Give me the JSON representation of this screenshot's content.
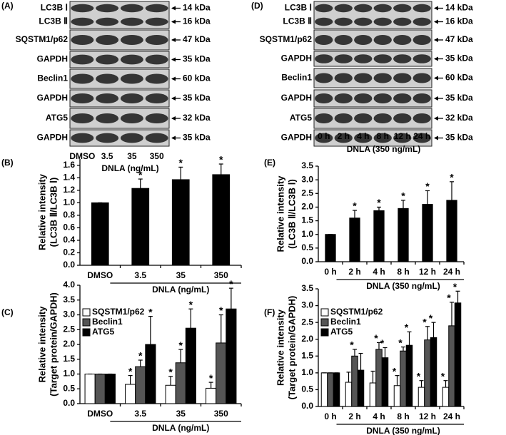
{
  "blots": [
    {
      "panel": "(A)",
      "lanes": [
        "DMSO",
        "3.5",
        "35",
        "350"
      ],
      "xlabel": "DNLA (ng/mL)",
      "rows": [
        {
          "labels": [
            "LC3B Ⅰ",
            "LC3B Ⅱ"
          ],
          "kda": [
            "14 kDa",
            "16 kDa"
          ]
        },
        {
          "labels": [
            "SQSTM1/p62"
          ],
          "kda": [
            "47 kDa"
          ]
        },
        {
          "labels": [
            "GAPDH"
          ],
          "kda": [
            "35 kDa"
          ]
        },
        {
          "labels": [
            "Beclin1"
          ],
          "kda": [
            "60 kDa"
          ]
        },
        {
          "labels": [
            "GAPDH"
          ],
          "kda": [
            "35 kDa"
          ]
        },
        {
          "labels": [
            "ATG5"
          ],
          "kda": [
            "32 kDa"
          ]
        },
        {
          "labels": [
            "GAPDH"
          ],
          "kda": [
            "35 kDa"
          ]
        }
      ]
    },
    {
      "panel": "(D)",
      "lanes": [
        "0 h",
        "2 h",
        "4 h",
        "8 h",
        "12 h",
        "24 h"
      ],
      "xlabel": "DNLA (350 ng/mL)",
      "rows": [
        {
          "labels": [
            "LC3B Ⅰ",
            "LC3B Ⅱ"
          ],
          "kda": [
            "14 kDa",
            "16 kDa"
          ]
        },
        {
          "labels": [
            "SQSTM1/p62"
          ],
          "kda": [
            "47 kDa"
          ]
        },
        {
          "labels": [
            "GAPDH"
          ],
          "kda": [
            "35 kDa"
          ]
        },
        {
          "labels": [
            "Beclin1"
          ],
          "kda": [
            "60 kDa"
          ]
        },
        {
          "labels": [
            "GAPDH"
          ],
          "kda": [
            "35 kDa"
          ]
        },
        {
          "labels": [
            "ATG5"
          ],
          "kda": [
            "32 kDa"
          ]
        },
        {
          "labels": [
            "GAPDH"
          ],
          "kda": [
            "35 kDa"
          ]
        }
      ]
    }
  ],
  "chart_data": [
    {
      "type": "bar",
      "panel": "(B)",
      "ylabel": [
        "Relative intensity",
        "(LC3B Ⅱ/LC3B Ⅰ)"
      ],
      "xlabel": "DNLA (ng/mL)",
      "categories": [
        "DMSO",
        "3.5",
        "35",
        "350"
      ],
      "values": [
        1.0,
        1.23,
        1.37,
        1.45
      ],
      "errors": [
        0,
        0.15,
        0.2,
        0.17
      ],
      "significant": [
        false,
        true,
        true,
        true
      ],
      "asterisk": "*",
      "color": "#000000",
      "ylim": [
        0,
        1.7
      ],
      "yticks": [
        {
          "value": 0,
          "label": "0.0"
        },
        0.2,
        0.4,
        0.6,
        0.8,
        {
          "value": 1,
          "label": "1.0"
        },
        1.2,
        1.4,
        1.6
      ]
    },
    {
      "type": "bar",
      "panel": "(E)",
      "ylabel": [
        "Relative intensity",
        "(LC3B Ⅱ/LC3B Ⅰ)"
      ],
      "xlabel": "DNLA (350 ng/mL)",
      "categories": [
        "0 h",
        "2 h",
        "4 h",
        "8 h",
        "12 h",
        "24 h"
      ],
      "values": [
        1.0,
        1.6,
        1.87,
        1.95,
        2.1,
        2.25
      ],
      "errors": [
        0,
        0.28,
        0.13,
        0.3,
        0.5,
        0.68
      ],
      "significant": [
        false,
        true,
        true,
        true,
        true,
        true
      ],
      "asterisk": "*",
      "color": "#000000",
      "ylim": [
        0,
        3.5
      ],
      "yticks": [
        {
          "value": 0,
          "label": "0.0"
        },
        0.5,
        {
          "value": 1,
          "label": "1.0"
        },
        1.5,
        {
          "value": 2,
          "label": "2.0"
        },
        2.5,
        {
          "value": 3,
          "label": "3.0"
        },
        3.5
      ]
    },
    {
      "type": "grouped-bar",
      "panel": "(C)",
      "ylabel": [
        "Relative intensity",
        "(Target protein/GAPDH)"
      ],
      "xlabel": "DNLA (ng/mL)",
      "categories": [
        "DMSO",
        "3.5",
        "35",
        "350"
      ],
      "asterisk": "*",
      "series": [
        {
          "name": "SQSTM1/p62",
          "color": "#ffffff",
          "values": [
            1.0,
            0.65,
            0.62,
            0.52
          ],
          "errors": [
            0,
            0.3,
            0.3,
            0.2
          ],
          "significant": [
            false,
            true,
            true,
            true
          ]
        },
        {
          "name": "Beclin1",
          "color": "#555555",
          "values": [
            1.0,
            1.25,
            1.38,
            2.05
          ],
          "errors": [
            0,
            0.22,
            0.45,
            0.95
          ],
          "significant": [
            false,
            true,
            true,
            true
          ]
        },
        {
          "name": "ATG5",
          "color": "#000000",
          "values": [
            1.0,
            2.0,
            2.55,
            3.2
          ],
          "errors": [
            0,
            0.95,
            0.65,
            0.7
          ],
          "significant": [
            false,
            true,
            true,
            true
          ]
        }
      ],
      "ylim": [
        0,
        4
      ],
      "yticks": [
        {
          "value": 0,
          "label": "0.0"
        },
        0.5,
        {
          "value": 1,
          "label": "1.0"
        },
        1.5,
        {
          "value": 2,
          "label": "2.0"
        },
        2.5,
        {
          "value": 3,
          "label": "3.0"
        },
        3.5,
        {
          "value": 4,
          "label": "4.0"
        }
      ]
    },
    {
      "type": "grouped-bar",
      "panel": "(F)",
      "ylabel": [
        "Relative intensity",
        "(Target protein/GAPDH)"
      ],
      "xlabel": "DNLA (350 ng/mL)",
      "categories": [
        "0 h",
        "2 h",
        "4 h",
        "8 h",
        "12 h",
        "24 h"
      ],
      "asterisk": "*",
      "series": [
        {
          "name": "SQSTM1/p62",
          "color": "#ffffff",
          "values": [
            1.0,
            0.72,
            0.7,
            0.62,
            0.57,
            0.57
          ],
          "errors": [
            0,
            0.3,
            0.35,
            0.3,
            0.2,
            0.2
          ],
          "significant": [
            false,
            false,
            false,
            true,
            true,
            true
          ]
        },
        {
          "name": "Beclin1",
          "color": "#555555",
          "values": [
            1.0,
            1.5,
            1.7,
            1.65,
            1.98,
            2.4
          ],
          "errors": [
            0,
            0.2,
            0.2,
            0.12,
            0.4,
            0.7
          ],
          "significant": [
            false,
            true,
            true,
            true,
            true,
            true
          ]
        },
        {
          "name": "ATG5",
          "color": "#000000",
          "values": [
            1.0,
            1.08,
            1.45,
            1.82,
            2.05,
            3.08
          ],
          "errors": [
            0,
            0.5,
            0.3,
            0.4,
            0.45,
            0.35
          ],
          "significant": [
            false,
            false,
            true,
            true,
            true,
            true
          ]
        }
      ],
      "ylim": [
        0,
        3.5
      ],
      "yticks": [
        {
          "value": 0,
          "label": "0.0"
        },
        0.5,
        {
          "value": 1,
          "label": "1.0"
        },
        1.5,
        {
          "value": 2,
          "label": "2.0"
        },
        2.5,
        {
          "value": 3,
          "label": "3.0"
        },
        3.5
      ]
    }
  ]
}
